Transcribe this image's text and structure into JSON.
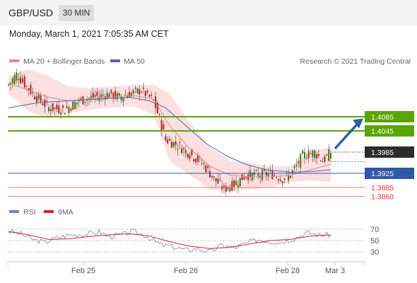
{
  "header": {
    "symbol": "GBP/USD",
    "timeframe": "30 MIN",
    "datetime": "Monday, March 1, 2021 7:05:35 AM CET"
  },
  "legend": {
    "ma20": "MA 20 + Bollinger Bands",
    "ma50": "MA 50",
    "copyright": "Research © 2021 Trading Central",
    "rsi": "RSI",
    "rsi_ma": "9MA"
  },
  "colors": {
    "resistance": "#5aa400",
    "pivot": "#2e58a8",
    "support": "#f07a7a",
    "candle_up": "#3d7a12",
    "candle_down": "#b81f1f",
    "bollinger_fill": "#fbd4d4",
    "ma20": "#e28a8a",
    "ma50": "#4a69b0",
    "rsi": "#6b82d6",
    "rsi_ma": "#e02020",
    "current_price_bg": "#2b2b2b"
  },
  "chart_data": {
    "type": "candlestick",
    "instrument": "GBP/USD",
    "interval": "30 MIN",
    "x_ticks": [
      "Feb 25",
      "Feb 26",
      "Feb 28",
      "Mar 3"
    ],
    "price_range": [
      1.3845,
      1.4225
    ],
    "levels": [
      {
        "label": "1.4085",
        "value": 1.4085,
        "kind": "resistance"
      },
      {
        "label": "1.4045",
        "value": 1.4045,
        "kind": "resistance"
      },
      {
        "label": "1.3985",
        "value": 1.3985,
        "kind": "current"
      },
      {
        "label": "1.3925",
        "value": 1.3925,
        "kind": "pivot"
      },
      {
        "label": "1.3885",
        "value": 1.3885,
        "kind": "support"
      },
      {
        "label": "1.3860",
        "value": 1.386,
        "kind": "support"
      }
    ],
    "expected_direction": "up",
    "price_path": [
      [
        0,
        1.4175
      ],
      [
        4,
        1.4205
      ],
      [
        12,
        1.415
      ],
      [
        20,
        1.411
      ],
      [
        28,
        1.4105
      ],
      [
        35,
        1.413
      ],
      [
        42,
        1.414
      ],
      [
        50,
        1.415
      ],
      [
        55,
        1.414
      ],
      [
        60,
        1.415
      ],
      [
        66,
        1.416
      ],
      [
        72,
        1.413
      ],
      [
        75,
        1.408
      ],
      [
        78,
        1.402
      ],
      [
        84,
        1.4005
      ],
      [
        90,
        1.398
      ],
      [
        96,
        1.3955
      ],
      [
        102,
        1.391
      ],
      [
        107,
        1.388
      ],
      [
        112,
        1.3895
      ],
      [
        118,
        1.392
      ],
      [
        124,
        1.392
      ],
      [
        130,
        1.3925
      ],
      [
        136,
        1.391
      ],
      [
        140,
        1.392
      ],
      [
        146,
        1.3975
      ],
      [
        152,
        1.3985
      ],
      [
        156,
        1.396
      ],
      [
        160,
        1.3985
      ]
    ],
    "bollinger_path": [
      [
        0,
        1.42,
        1.415
      ],
      [
        10,
        1.422,
        1.41
      ],
      [
        20,
        1.42,
        1.408
      ],
      [
        30,
        1.417,
        1.4095
      ],
      [
        40,
        1.4165,
        1.4105
      ],
      [
        50,
        1.417,
        1.411
      ],
      [
        62,
        1.4175,
        1.4115
      ],
      [
        72,
        1.4175,
        1.409
      ],
      [
        80,
        1.415,
        1.396
      ],
      [
        90,
        1.407,
        1.392
      ],
      [
        100,
        1.4,
        1.388
      ],
      [
        110,
        1.396,
        1.3875
      ],
      [
        120,
        1.3955,
        1.388
      ],
      [
        130,
        1.3945,
        1.3885
      ],
      [
        140,
        1.3945,
        1.39
      ],
      [
        150,
        1.3985,
        1.3905
      ],
      [
        160,
        1.4,
        1.39
      ]
    ],
    "ma20_path": [
      [
        0,
        1.418
      ],
      [
        10,
        1.416
      ],
      [
        20,
        1.414
      ],
      [
        30,
        1.413
      ],
      [
        40,
        1.4135
      ],
      [
        50,
        1.414
      ],
      [
        62,
        1.4145
      ],
      [
        72,
        1.4135
      ],
      [
        80,
        1.406
      ],
      [
        90,
        1.3995
      ],
      [
        100,
        1.3945
      ],
      [
        110,
        1.392
      ],
      [
        120,
        1.3915
      ],
      [
        130,
        1.3915
      ],
      [
        140,
        1.392
      ],
      [
        150,
        1.3935
      ],
      [
        160,
        1.395
      ]
    ],
    "ma50_path": [
      [
        0,
        1.411
      ],
      [
        15,
        1.4125
      ],
      [
        30,
        1.413
      ],
      [
        45,
        1.4135
      ],
      [
        60,
        1.414
      ],
      [
        70,
        1.413
      ],
      [
        78,
        1.411
      ],
      [
        88,
        1.406
      ],
      [
        98,
        1.401
      ],
      [
        108,
        1.3975
      ],
      [
        118,
        1.395
      ],
      [
        128,
        1.3935
      ],
      [
        140,
        1.3928
      ],
      [
        150,
        1.393
      ],
      [
        160,
        1.3935
      ]
    ],
    "rsi": {
      "levels": [
        30,
        50,
        70
      ],
      "range": [
        20,
        80
      ],
      "path": [
        [
          0,
          67
        ],
        [
          6,
          62
        ],
        [
          12,
          52
        ],
        [
          18,
          47
        ],
        [
          24,
          55
        ],
        [
          30,
          60
        ],
        [
          38,
          61
        ],
        [
          45,
          65
        ],
        [
          50,
          57
        ],
        [
          56,
          60
        ],
        [
          62,
          66
        ],
        [
          68,
          59
        ],
        [
          72,
          50
        ],
        [
          76,
          42
        ],
        [
          82,
          39
        ],
        [
          88,
          33
        ],
        [
          94,
          36
        ],
        [
          100,
          30
        ],
        [
          106,
          42
        ],
        [
          112,
          37
        ],
        [
          118,
          45
        ],
        [
          124,
          52
        ],
        [
          130,
          48
        ],
        [
          136,
          48
        ],
        [
          142,
          54
        ],
        [
          148,
          64
        ],
        [
          154,
          60
        ],
        [
          160,
          60
        ]
      ],
      "ma_path": [
        [
          0,
          66
        ],
        [
          10,
          60
        ],
        [
          20,
          52
        ],
        [
          30,
          53
        ],
        [
          40,
          57
        ],
        [
          50,
          60
        ],
        [
          60,
          62
        ],
        [
          70,
          58
        ],
        [
          80,
          48
        ],
        [
          90,
          40
        ],
        [
          100,
          36
        ],
        [
          110,
          38
        ],
        [
          120,
          44
        ],
        [
          130,
          50
        ],
        [
          140,
          52
        ],
        [
          150,
          58
        ],
        [
          160,
          60
        ]
      ]
    }
  }
}
